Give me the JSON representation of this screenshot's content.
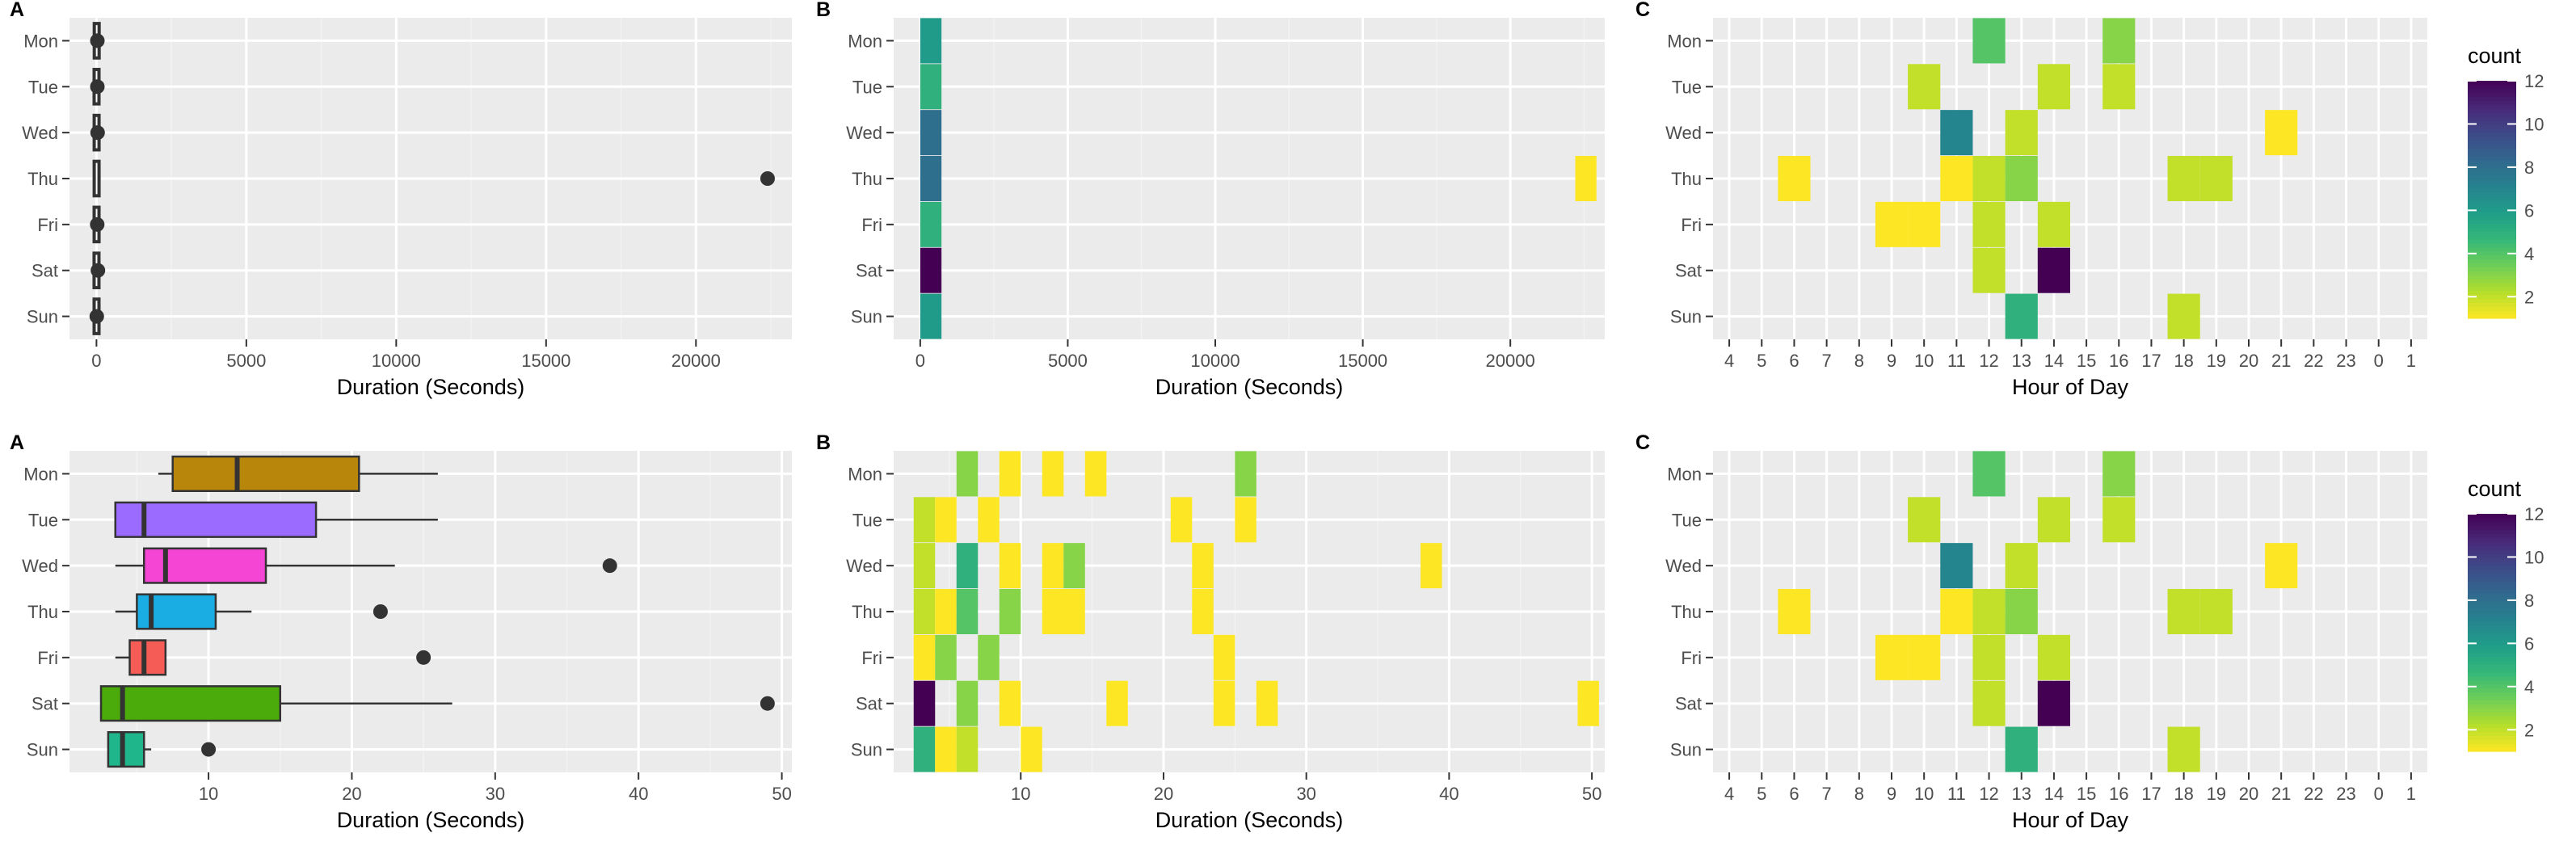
{
  "chart_data": [
    {
      "type": "boxplot",
      "panel_label": "A",
      "xlabel": "Duration (Seconds)",
      "ylabel": "",
      "xlim": [
        -900,
        23200
      ],
      "xticks": [
        0,
        5000,
        10000,
        15000,
        20000
      ],
      "xticklabels": [
        "0",
        "5000",
        "10000",
        "15000",
        "20000"
      ],
      "categories": [
        "Mon",
        "Tue",
        "Wed",
        "Thu",
        "Fri",
        "Sat",
        "Sun"
      ],
      "boxes": [
        {
          "min": 6,
          "q1": 8,
          "median": 12,
          "q3": 20,
          "max": 26
        },
        {
          "min": 3,
          "q1": 3,
          "median": 5,
          "q3": 17,
          "max": 26
        },
        {
          "min": 3,
          "q1": 5,
          "median": 7,
          "q3": 14,
          "max": 23
        },
        {
          "min": 4,
          "q1": 5,
          "median": 6,
          "q3": 10,
          "max": 13
        },
        {
          "min": 3,
          "q1": 4,
          "median": 5,
          "q3": 7,
          "max": 7
        },
        {
          "min": 2,
          "q1": 2,
          "median": 3,
          "q3": 15,
          "max": 27
        },
        {
          "min": 3,
          "q1": 3,
          "median": 4,
          "q3": 5,
          "max": 6
        }
      ],
      "outliers": [
        {
          "day": "Mon",
          "x": 30
        },
        {
          "day": "Tue",
          "x": 30
        },
        {
          "day": "Wed",
          "x": 38
        },
        {
          "day": "Thu",
          "x": 22390
        },
        {
          "day": "Fri",
          "x": 25
        },
        {
          "day": "Sat",
          "x": 49
        },
        {
          "day": "Sun",
          "x": 10
        }
      ],
      "grid": true
    },
    {
      "type": "heatmap",
      "panel_label": "B",
      "xlabel": "Duration (Seconds)",
      "xlim": [
        -900,
        23200
      ],
      "xticks": [
        0,
        5000,
        10000,
        15000,
        20000
      ],
      "xticklabels": [
        "0",
        "5000",
        "10000",
        "15000",
        "20000"
      ],
      "categories": [
        "Mon",
        "Tue",
        "Wed",
        "Thu",
        "Fri",
        "Sat",
        "Sun"
      ],
      "bin_width": 720,
      "cells": [
        {
          "day": "Mon",
          "x0": 0,
          "x1": 720,
          "count": 6
        },
        {
          "day": "Tue",
          "x0": 0,
          "x1": 720,
          "count": 5
        },
        {
          "day": "Wed",
          "x0": 0,
          "x1": 720,
          "count": 8
        },
        {
          "day": "Thu",
          "x0": 0,
          "x1": 720,
          "count": 8
        },
        {
          "day": "Thu",
          "x0": 22200,
          "x1": 22920,
          "count": 1
        },
        {
          "day": "Fri",
          "x0": 0,
          "x1": 720,
          "count": 5
        },
        {
          "day": "Sat",
          "x0": 0,
          "x1": 720,
          "count": 12
        },
        {
          "day": "Sun",
          "x0": 0,
          "x1": 720,
          "count": 6
        }
      ],
      "color_scale": "viridis-reversed",
      "grid": true
    },
    {
      "type": "heatmap",
      "panel_label": "C",
      "xlabel": "Hour of Day",
      "xticklabels": [
        "4",
        "5",
        "6",
        "7",
        "8",
        "9",
        "10",
        "11",
        "12",
        "13",
        "14",
        "15",
        "16",
        "17",
        "18",
        "19",
        "20",
        "21",
        "22",
        "23",
        "0",
        "1"
      ],
      "categories": [
        "Mon",
        "Tue",
        "Wed",
        "Thu",
        "Fri",
        "Sat",
        "Sun"
      ],
      "cells": [
        {
          "day": "Mon",
          "hour": "12",
          "count": 4
        },
        {
          "day": "Mon",
          "hour": "16",
          "count": 3
        },
        {
          "day": "Tue",
          "hour": "10",
          "count": 2
        },
        {
          "day": "Tue",
          "hour": "14",
          "count": 2
        },
        {
          "day": "Tue",
          "hour": "16",
          "count": 2
        },
        {
          "day": "Wed",
          "hour": "11",
          "count": 7
        },
        {
          "day": "Wed",
          "hour": "13",
          "count": 2
        },
        {
          "day": "Wed",
          "hour": "21",
          "count": 1
        },
        {
          "day": "Thu",
          "hour": "6",
          "count": 1
        },
        {
          "day": "Thu",
          "hour": "11",
          "count": 1
        },
        {
          "day": "Thu",
          "hour": "12",
          "count": 2
        },
        {
          "day": "Thu",
          "hour": "13",
          "count": 3
        },
        {
          "day": "Thu",
          "hour": "18",
          "count": 2
        },
        {
          "day": "Thu",
          "hour": "19",
          "count": 2
        },
        {
          "day": "Fri",
          "hour": "9",
          "count": 1
        },
        {
          "day": "Fri",
          "hour": "10",
          "count": 1
        },
        {
          "day": "Fri",
          "hour": "12",
          "count": 2
        },
        {
          "day": "Fri",
          "hour": "14",
          "count": 2
        },
        {
          "day": "Sat",
          "hour": "12",
          "count": 2
        },
        {
          "day": "Sat",
          "hour": "14",
          "count": 12
        },
        {
          "day": "Sun",
          "hour": "13",
          "count": 5
        },
        {
          "day": "Sun",
          "hour": "18",
          "count": 2
        }
      ],
      "color_scale": "viridis-reversed",
      "legend": {
        "title": "count",
        "ticks": [
          2,
          4,
          6,
          8,
          10,
          12
        ],
        "range": [
          1,
          12
        ],
        "placement": "right"
      },
      "grid": true
    },
    {
      "type": "boxplot",
      "panel_label": "A",
      "xlabel": "Duration (Seconds)",
      "xlim": [
        0.3,
        50.7
      ],
      "xticks": [
        10,
        20,
        30,
        40,
        50
      ],
      "xticklabels": [
        "10",
        "20",
        "30",
        "40",
        "50"
      ],
      "categories": [
        "Mon",
        "Tue",
        "Wed",
        "Thu",
        "Fri",
        "Sat",
        "Sun"
      ],
      "colors": [
        "#B8860B",
        "#9B6BFF",
        "#F545D5",
        "#1AADE4",
        "#F55C55",
        "#4BAB0A",
        "#20B68C"
      ],
      "boxes": [
        {
          "min": 6.5,
          "q1": 7.5,
          "median": 12,
          "q3": 20.5,
          "max": 26
        },
        {
          "min": 3.5,
          "q1": 3.5,
          "median": 5.5,
          "q3": 17.5,
          "max": 26
        },
        {
          "min": 3.5,
          "q1": 5.5,
          "median": 7,
          "q3": 14,
          "max": 23
        },
        {
          "min": 3.5,
          "q1": 5,
          "median": 6,
          "q3": 10.5,
          "max": 13
        },
        {
          "min": 3.5,
          "q1": 4.5,
          "median": 5.5,
          "q3": 7,
          "max": 7
        },
        {
          "min": 2.5,
          "q1": 2.5,
          "median": 4,
          "q3": 15,
          "max": 27
        },
        {
          "min": 3,
          "q1": 3,
          "median": 4,
          "q3": 5.5,
          "max": 6
        }
      ],
      "outliers": [
        {
          "day": "Wed",
          "x": 38
        },
        {
          "day": "Thu",
          "x": 22
        },
        {
          "day": "Fri",
          "x": 25
        },
        {
          "day": "Sat",
          "x": 49
        },
        {
          "day": "Sun",
          "x": 10
        }
      ],
      "grid": true
    },
    {
      "type": "heatmap",
      "panel_label": "B",
      "xlabel": "Duration (Seconds)",
      "xlim": [
        1.1,
        50.9
      ],
      "xticks": [
        10,
        20,
        30,
        40,
        50
      ],
      "xticklabels": [
        "10",
        "20",
        "30",
        "40",
        "50"
      ],
      "categories": [
        "Mon",
        "Tue",
        "Wed",
        "Thu",
        "Fri",
        "Sat",
        "Sun"
      ],
      "bin_width": 1.5,
      "cells": [
        {
          "day": "Mon",
          "x0": 5.5,
          "x1": 7,
          "count": 3
        },
        {
          "day": "Mon",
          "x0": 8.5,
          "x1": 10,
          "count": 1
        },
        {
          "day": "Mon",
          "x0": 11.5,
          "x1": 13,
          "count": 1
        },
        {
          "day": "Mon",
          "x0": 14.5,
          "x1": 16,
          "count": 1
        },
        {
          "day": "Mon",
          "x0": 25,
          "x1": 26.5,
          "count": 3
        },
        {
          "day": "Tue",
          "x0": 2.5,
          "x1": 4,
          "count": 2
        },
        {
          "day": "Tue",
          "x0": 4,
          "x1": 5.5,
          "count": 1
        },
        {
          "day": "Tue",
          "x0": 7,
          "x1": 8.5,
          "count": 1
        },
        {
          "day": "Tue",
          "x0": 20.5,
          "x1": 22,
          "count": 1
        },
        {
          "day": "Tue",
          "x0": 25,
          "x1": 26.5,
          "count": 1
        },
        {
          "day": "Wed",
          "x0": 2.5,
          "x1": 4,
          "count": 2
        },
        {
          "day": "Wed",
          "x0": 5.5,
          "x1": 7,
          "count": 5
        },
        {
          "day": "Wed",
          "x0": 8.5,
          "x1": 10,
          "count": 1
        },
        {
          "day": "Wed",
          "x0": 11.5,
          "x1": 13,
          "count": 1
        },
        {
          "day": "Wed",
          "x0": 13,
          "x1": 14.5,
          "count": 3
        },
        {
          "day": "Wed",
          "x0": 22,
          "x1": 23.5,
          "count": 1
        },
        {
          "day": "Wed",
          "x0": 38,
          "x1": 39.5,
          "count": 1
        },
        {
          "day": "Thu",
          "x0": 2.5,
          "x1": 4,
          "count": 2
        },
        {
          "day": "Thu",
          "x0": 4,
          "x1": 5.5,
          "count": 1
        },
        {
          "day": "Thu",
          "x0": 5.5,
          "x1": 7,
          "count": 4
        },
        {
          "day": "Thu",
          "x0": 8.5,
          "x1": 10,
          "count": 3
        },
        {
          "day": "Thu",
          "x0": 11.5,
          "x1": 14.5,
          "count": 1
        },
        {
          "day": "Thu",
          "x0": 22,
          "x1": 23.5,
          "count": 1
        },
        {
          "day": "Fri",
          "x0": 2.5,
          "x1": 4,
          "count": 1
        },
        {
          "day": "Fri",
          "x0": 4,
          "x1": 5.5,
          "count": 3
        },
        {
          "day": "Fri",
          "x0": 7,
          "x1": 8.5,
          "count": 3
        },
        {
          "day": "Fri",
          "x0": 23.5,
          "x1": 25,
          "count": 1
        },
        {
          "day": "Sat",
          "x0": 2.5,
          "x1": 4,
          "count": 12
        },
        {
          "day": "Sat",
          "x0": 5.5,
          "x1": 7,
          "count": 3
        },
        {
          "day": "Sat",
          "x0": 8.5,
          "x1": 10,
          "count": 1
        },
        {
          "day": "Sat",
          "x0": 16,
          "x1": 17.5,
          "count": 1
        },
        {
          "day": "Sat",
          "x0": 23.5,
          "x1": 25,
          "count": 1
        },
        {
          "day": "Sat",
          "x0": 26.5,
          "x1": 28,
          "count": 1
        },
        {
          "day": "Sat",
          "x0": 49,
          "x1": 50.5,
          "count": 1
        },
        {
          "day": "Sun",
          "x0": 2.5,
          "x1": 4,
          "count": 5
        },
        {
          "day": "Sun",
          "x0": 4,
          "x1": 5.5,
          "count": 1
        },
        {
          "day": "Sun",
          "x0": 5.5,
          "x1": 7,
          "count": 2
        },
        {
          "day": "Sun",
          "x0": 10,
          "x1": 11.5,
          "count": 1
        }
      ],
      "color_scale": "viridis-reversed",
      "grid": true
    },
    {
      "type": "heatmap",
      "panel_label": "C",
      "xlabel": "Hour of Day",
      "xticklabels": [
        "4",
        "5",
        "6",
        "7",
        "8",
        "9",
        "10",
        "11",
        "12",
        "13",
        "14",
        "15",
        "16",
        "17",
        "18",
        "19",
        "20",
        "21",
        "22",
        "23",
        "0",
        "1"
      ],
      "categories": [
        "Mon",
        "Tue",
        "Wed",
        "Thu",
        "Fri",
        "Sat",
        "Sun"
      ],
      "cells": [
        {
          "day": "Mon",
          "hour": "12",
          "count": 4
        },
        {
          "day": "Mon",
          "hour": "16",
          "count": 3
        },
        {
          "day": "Tue",
          "hour": "10",
          "count": 2
        },
        {
          "day": "Tue",
          "hour": "14",
          "count": 2
        },
        {
          "day": "Tue",
          "hour": "16",
          "count": 2
        },
        {
          "day": "Wed",
          "hour": "11",
          "count": 7
        },
        {
          "day": "Wed",
          "hour": "13",
          "count": 2
        },
        {
          "day": "Wed",
          "hour": "21",
          "count": 1
        },
        {
          "day": "Thu",
          "hour": "6",
          "count": 1
        },
        {
          "day": "Thu",
          "hour": "11",
          "count": 1
        },
        {
          "day": "Thu",
          "hour": "12",
          "count": 2
        },
        {
          "day": "Thu",
          "hour": "13",
          "count": 3
        },
        {
          "day": "Thu",
          "hour": "18",
          "count": 2
        },
        {
          "day": "Thu",
          "hour": "19",
          "count": 2
        },
        {
          "day": "Fri",
          "hour": "9",
          "count": 1
        },
        {
          "day": "Fri",
          "hour": "10",
          "count": 1
        },
        {
          "day": "Fri",
          "hour": "12",
          "count": 2
        },
        {
          "day": "Fri",
          "hour": "14",
          "count": 2
        },
        {
          "day": "Sat",
          "hour": "12",
          "count": 2
        },
        {
          "day": "Sat",
          "hour": "14",
          "count": 12
        },
        {
          "day": "Sun",
          "hour": "13",
          "count": 5
        },
        {
          "day": "Sun",
          "hour": "18",
          "count": 2
        }
      ],
      "color_scale": "viridis-reversed",
      "legend": {
        "title": "count",
        "ticks": [
          2,
          4,
          6,
          8,
          10,
          12
        ],
        "range": [
          1,
          12
        ],
        "placement": "right"
      },
      "grid": true
    }
  ]
}
